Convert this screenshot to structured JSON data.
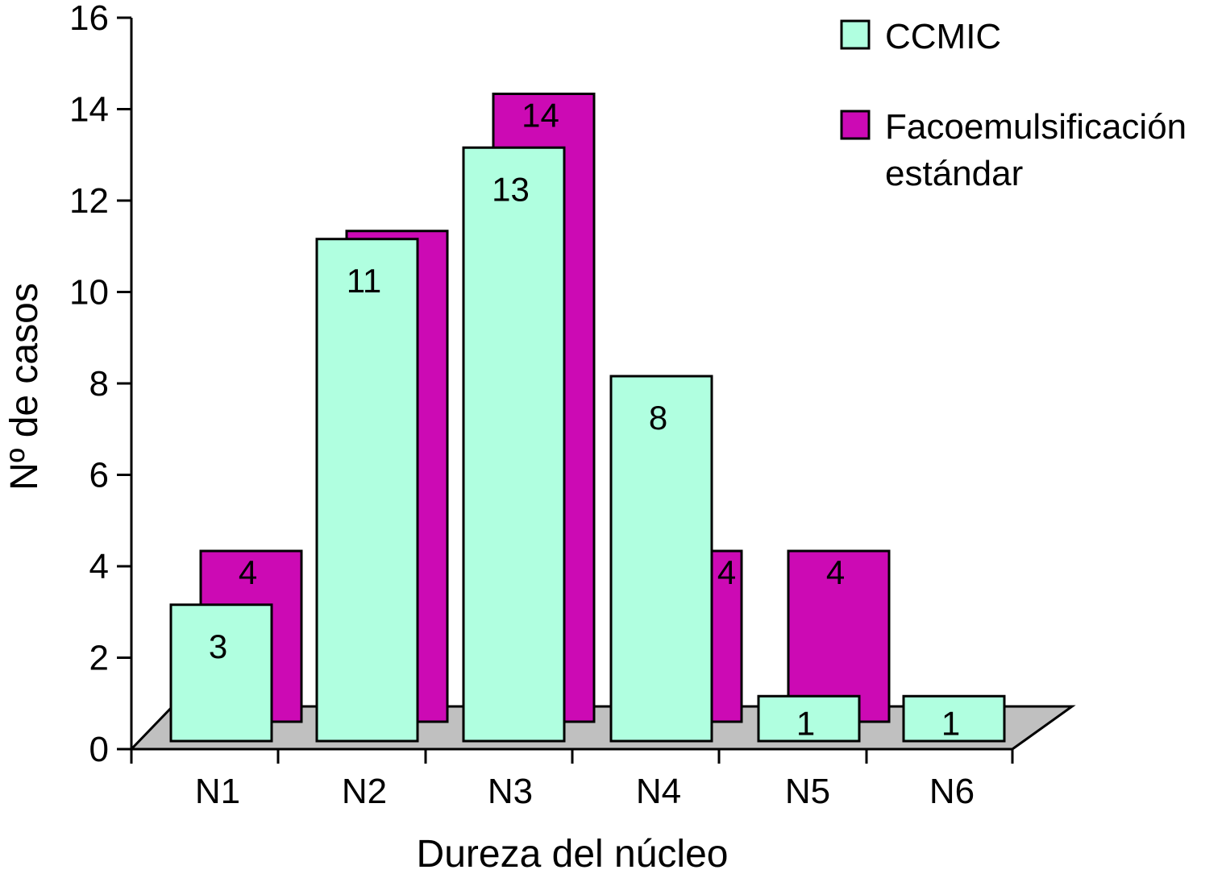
{
  "chart_data": {
    "type": "bar",
    "style": "3d-clustered",
    "xlabel": "Dureza del núcleo",
    "ylabel": "Nº de casos",
    "ylim": [
      0,
      16
    ],
    "yticks": [
      "0",
      "2",
      "4",
      "6",
      "8",
      "10",
      "12",
      "14",
      "16"
    ],
    "categories": [
      "N1",
      "N2",
      "N3",
      "N4",
      "N5",
      "N6"
    ],
    "legend_position": "top-right",
    "series": [
      {
        "name": "CCMIC",
        "color": "#b0ffe0",
        "values": [
          3,
          11,
          13,
          8,
          1,
          1
        ],
        "labels": [
          "3",
          "11",
          "13",
          "8",
          "1",
          "1"
        ]
      },
      {
        "name": "Facoemulsificación estándar",
        "name_lines": [
          "Facoemulsificación",
          "estándar"
        ],
        "color": "#cc0ab4",
        "values": [
          4,
          11,
          14,
          4,
          4,
          0
        ],
        "labels": [
          "4",
          "",
          "14",
          "4",
          "4",
          ""
        ]
      }
    ],
    "floor_color": "#c0c0c0"
  }
}
